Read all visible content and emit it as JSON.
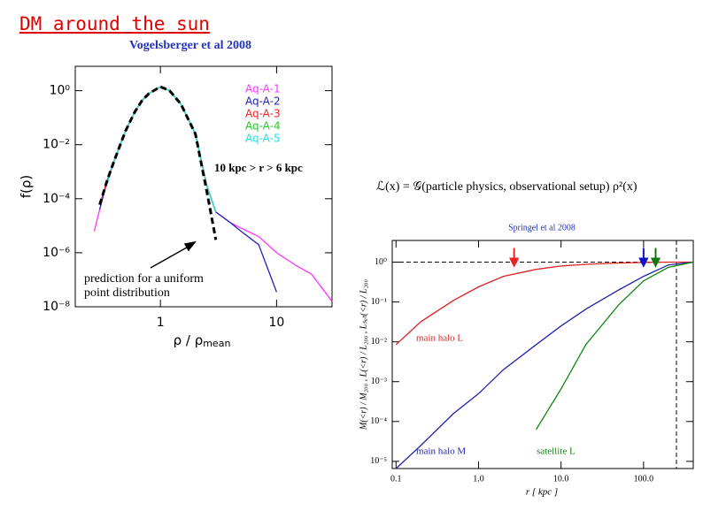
{
  "slide_title": "DM around the sun",
  "formula": "ℒ(x) = 𝒢(particle physics, observational setup) ρ²(x)",
  "chart_data": [
    {
      "type": "line",
      "title": "Vogelsberger et al 2008",
      "xlabel": "ρ / ρ",
      "xlabel_subscript": "mean",
      "ylabel": "f(ρ)",
      "log_x": true,
      "log_y": true,
      "xlim": [
        0.185,
        30
      ],
      "ylim": [
        1e-08,
        8
      ],
      "xticks": [
        1,
        10
      ],
      "yticks": [
        {
          "value": 1,
          "label": "10⁰"
        },
        {
          "value": 0.01,
          "label": "10⁻²"
        },
        {
          "value": 0.0001,
          "label": "10⁻⁴"
        },
        {
          "value": 1e-06,
          "label": "10⁻⁶"
        },
        {
          "value": 1e-08,
          "label": "10⁻⁸"
        }
      ],
      "legend": "upper right",
      "annotations": [
        "10 kpc > r > 6 kpc",
        "prediction for a uniform",
        "point distribution"
      ],
      "x": [
        0.27,
        0.3,
        0.35,
        0.4,
        0.5,
        0.6,
        0.7,
        0.8,
        1,
        1.2,
        1.5,
        2,
        2.5,
        3,
        4,
        5,
        7,
        10,
        15,
        20,
        30
      ],
      "series": [
        {
          "name": "Aq-A-1",
          "color": "#ff33ff",
          "values": [
            6.3e-06,
            4e-05,
            0.0005,
            0.0025,
            0.032,
            0.16,
            0.45,
            0.79,
            1.4,
            1.0,
            0.32,
            0.025,
            0.00032,
            3.2e-05,
            1.3e-05,
            8e-06,
            4e-06,
            1e-06,
            3.2e-07,
            1.6e-07,
            1.6e-08
          ]
        },
        {
          "name": "Aq-A-2",
          "color": "#2222bb",
          "values": [
            null,
            4e-05,
            0.0005,
            0.0025,
            0.032,
            0.16,
            0.45,
            0.79,
            1.4,
            1.0,
            0.32,
            0.025,
            0.00032,
            3.2e-05,
            1.3e-05,
            6e-06,
            2e-06,
            3.5e-08,
            null,
            null,
            null
          ]
        },
        {
          "name": "Aq-A-3",
          "color": "#ee2222",
          "values": [
            null,
            6e-05,
            0.0005,
            0.0025,
            0.032,
            0.16,
            0.45,
            0.79,
            1.4,
            1.0,
            0.32,
            0.025,
            0.00032,
            3.2e-05,
            null,
            null,
            null,
            null,
            null,
            null,
            null
          ]
        },
        {
          "name": "Aq-A-4",
          "color": "#22cc22",
          "values": [
            null,
            null,
            0.0004,
            0.0025,
            0.032,
            0.16,
            0.45,
            0.79,
            1.4,
            1.0,
            0.32,
            0.025,
            0.00032,
            3.2e-05,
            null,
            null,
            null,
            null,
            null,
            null,
            null
          ]
        },
        {
          "name": "Aq-A-5",
          "color": "#22dddd",
          "values": [
            null,
            null,
            0.0004,
            0.0025,
            0.032,
            0.16,
            0.45,
            0.79,
            1.4,
            1.0,
            0.32,
            0.025,
            0.00032,
            3.2e-05,
            null,
            null,
            null,
            null,
            null,
            null,
            null
          ]
        },
        {
          "color": "#000000",
          "dashed": true,
          "values": [
            null,
            6e-05,
            0.0005,
            0.0025,
            0.032,
            0.16,
            0.45,
            0.79,
            1.4,
            1.0,
            0.32,
            0.025,
            0.0002,
            3e-06,
            null,
            null,
            null,
            null,
            null,
            null,
            null
          ]
        }
      ]
    },
    {
      "type": "line",
      "title": "Springel et al 2008",
      "xlabel": "r [ kpc ]",
      "ylabel": "M(<r) / M₂₀₀ ,  L(<r) / L₂₀₀ ,  Lₛₐₜ(<r) / L₂₀₀",
      "log_x": true,
      "log_y": true,
      "xlim": [
        0.09,
        400
      ],
      "ylim": [
        6.6e-06,
        3.5
      ],
      "xticks": [
        0.1,
        {
          "value": 1,
          "label": "1.0"
        },
        {
          "value": 10,
          "label": "10.0"
        },
        {
          "value": 100,
          "label": "100.0"
        }
      ],
      "yticks": [
        {
          "value": 1,
          "label": "10⁰"
        },
        {
          "value": 0.1,
          "label": "10⁻¹"
        },
        {
          "value": 0.01,
          "label": "10⁻²"
        },
        {
          "value": 0.001,
          "label": "10⁻³"
        },
        {
          "value": 0.0001,
          "label": "10⁻⁴"
        },
        {
          "value": 1e-05,
          "label": "10⁻⁵"
        }
      ],
      "hline": 1,
      "vline": 250,
      "arrows": [
        {
          "x": 2.7,
          "color": "#ee2222"
        },
        {
          "x": 100,
          "color": "#1111cc"
        },
        {
          "x": 140,
          "color": "#117711"
        }
      ],
      "x": [
        0.1,
        0.2,
        0.5,
        1,
        2,
        5,
        10,
        20,
        50,
        100,
        200,
        400
      ],
      "series": [
        {
          "name": "main halo L",
          "color": "#dd2222",
          "values": [
            0.0085,
            0.032,
            0.11,
            0.24,
            0.44,
            0.66,
            0.8,
            0.88,
            0.95,
            0.98,
            1,
            1
          ]
        },
        {
          "name": "main halo M",
          "color": "#2222aa",
          "values": [
            6.6e-06,
            2.5e-05,
            0.00016,
            0.0005,
            0.002,
            0.0085,
            0.025,
            0.066,
            0.2,
            0.44,
            0.85,
            1
          ]
        },
        {
          "name": "satellite L",
          "color": "#118811",
          "values": [
            null,
            null,
            null,
            null,
            null,
            6.3e-05,
            0.00066,
            0.0085,
            0.085,
            0.34,
            0.74,
            1
          ]
        }
      ]
    }
  ]
}
